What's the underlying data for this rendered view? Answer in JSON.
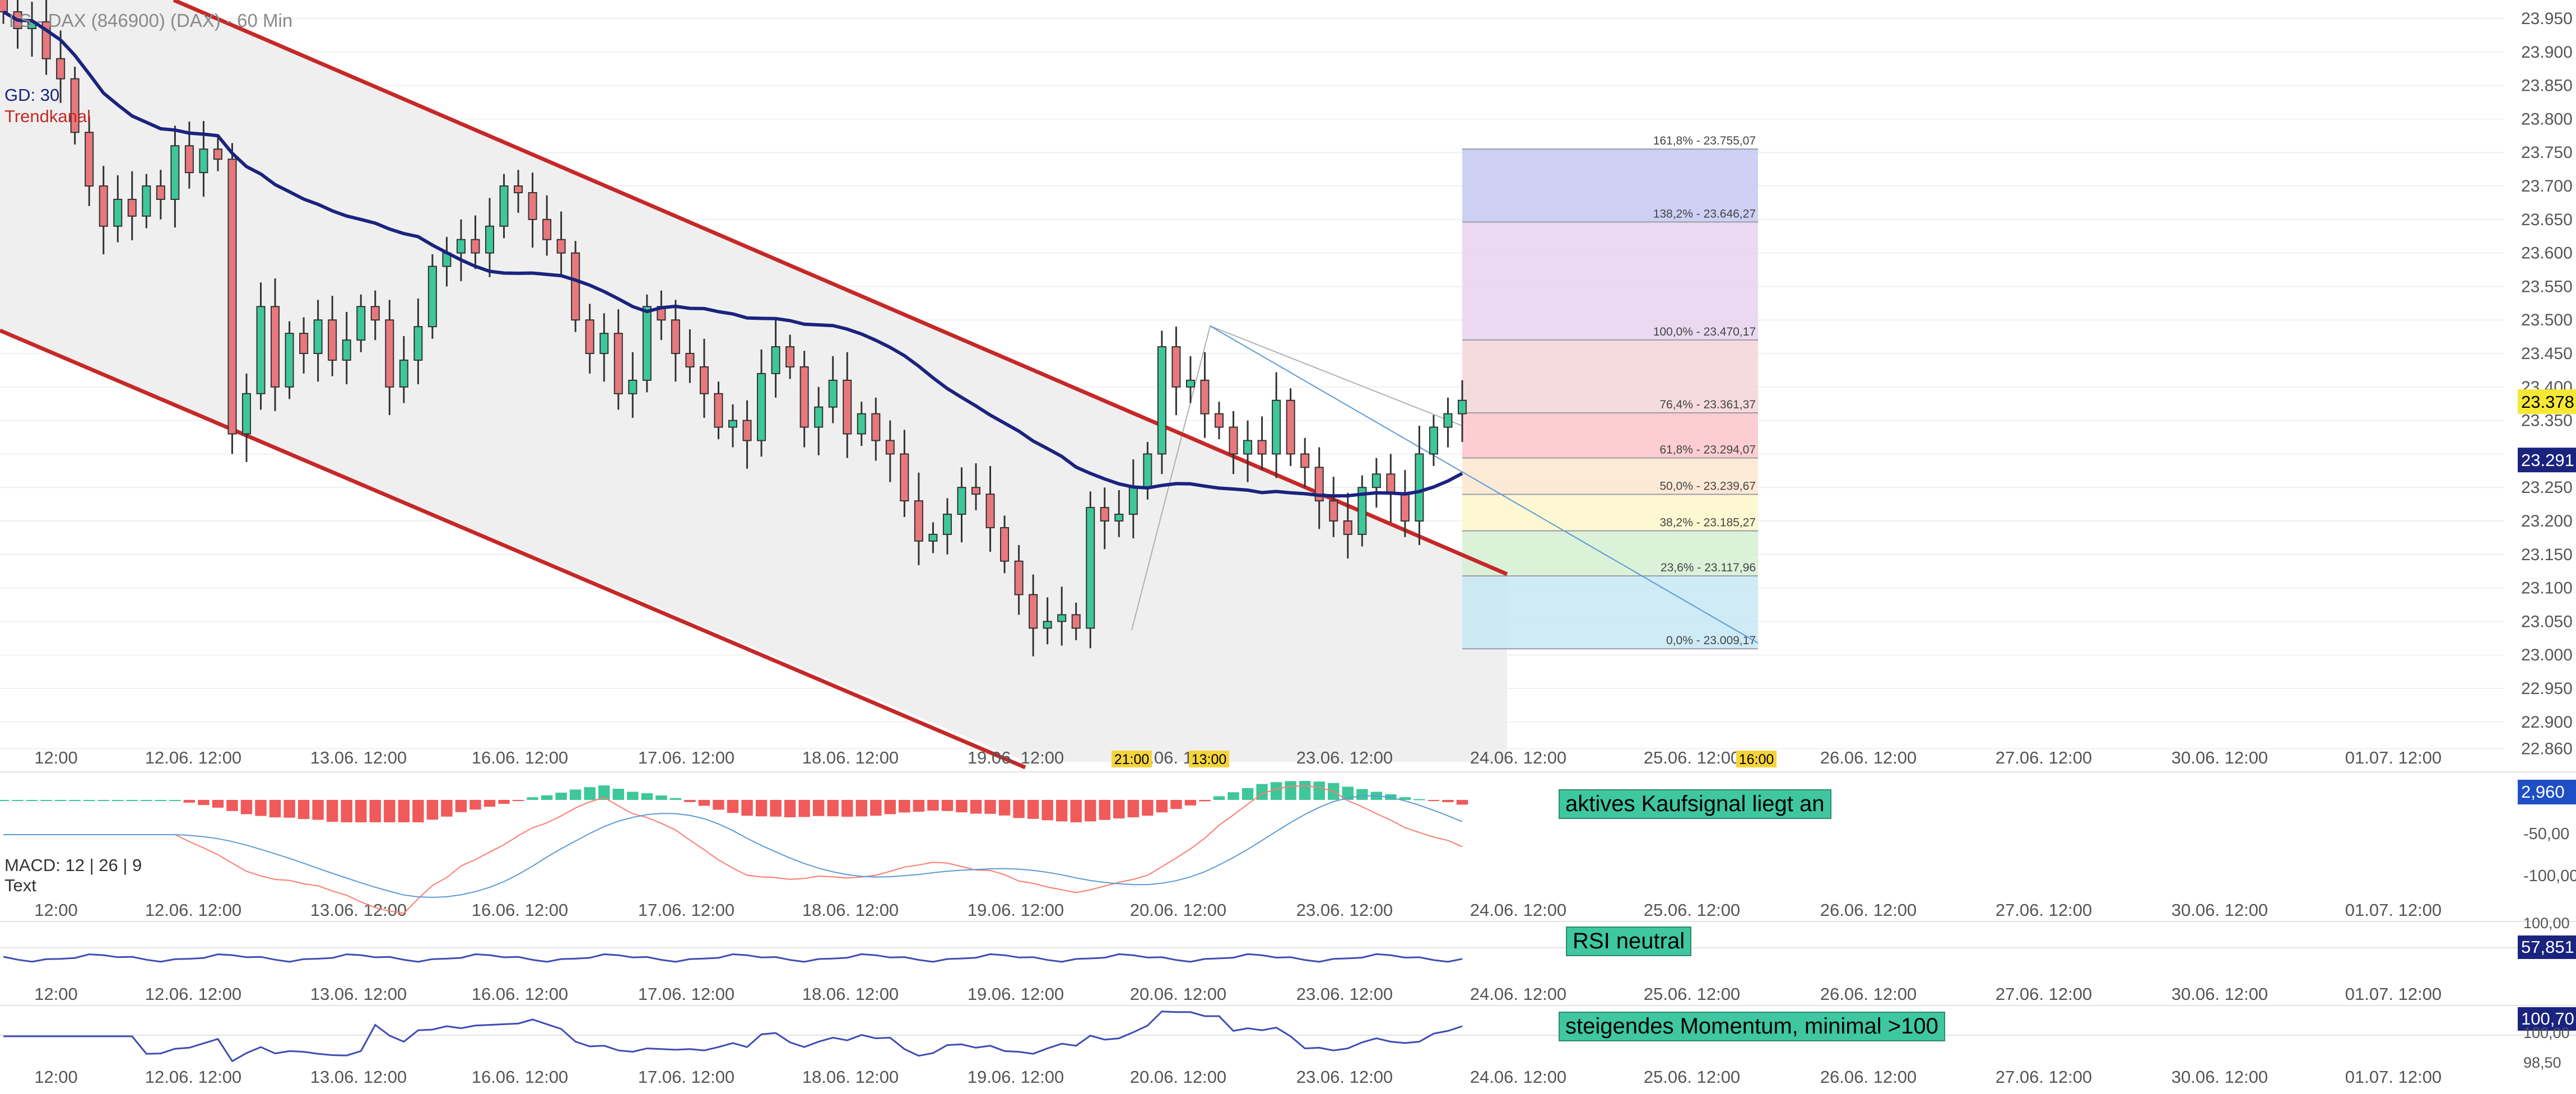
{
  "header": {
    "title": "LS - DAX (846900) (DAX) - 60 Min",
    "legend_gd": "GD: 30",
    "legend_trend": "Trendkanal"
  },
  "macd": {
    "label": "MACD: 12 | 26 | 9",
    "sublabel": "Text",
    "signal_text": "aktives Kaufsignal liegt an",
    "axis_labels": [
      "-50,00",
      "-100,00"
    ],
    "current_value": "2,960"
  },
  "rsi": {
    "signal_text": "RSI neutral",
    "current_value": "57,851",
    "axis_top": "100,00"
  },
  "momentum": {
    "signal_text": "steigendes Momentum, minimal >100",
    "current_value": "100,70",
    "axis_top": "100,00",
    "axis_bottom": "98,50"
  },
  "price_badges": {
    "last": "23.378",
    "ma": "23.291"
  },
  "time_badges": [
    "21:00",
    "13:00",
    "16:00"
  ],
  "colors": {
    "up": "#3ec79a",
    "down": "#e8787c",
    "trend": "#c62828",
    "ma": "#1a237e",
    "macd_pos": "#3ec79a",
    "macd_neg": "#f05a5a"
  },
  "chart_data": {
    "type": "candlestick",
    "title": "LS - DAX (846900) (DAX) - 60 Min",
    "y_ticks": [
      "23.950",
      "23.900",
      "23.850",
      "23.800",
      "23.750",
      "23.700",
      "23.650",
      "23.600",
      "23.550",
      "23.500",
      "23.450",
      "23.400",
      "23.350",
      "23.300",
      "23.250",
      "23.200",
      "23.150",
      "23.100",
      "23.050",
      "23.000",
      "22.950",
      "22.900",
      "22.860"
    ],
    "ylim": [
      22860,
      23960
    ],
    "x_tick_labels": [
      "12:00",
      "12.06. 12:00",
      "13.06. 12:00",
      "16.06. 12:00",
      "17.06. 12:00",
      "18.06. 12:00",
      "19.06. 12:00",
      "20.06. 12:00",
      "23.06. 12:00",
      "24.06. 12:00",
      "25.06. 12:00",
      "26.06. 12:00",
      "27.06. 12:00",
      "30.06. 12:00",
      "01.07. 12:00"
    ],
    "fibonacci": [
      {
        "label": "161,8% - 23.755,07",
        "value": 23755.07
      },
      {
        "label": "138,2% - 23.646,27",
        "value": 23646.27
      },
      {
        "label": "100,0% - 23.470,17",
        "value": 23470.17
      },
      {
        "label": "76,4% - 23.361,37",
        "value": 23361.37
      },
      {
        "label": "61,8% - 23.294,07",
        "value": 23294.07
      },
      {
        "label": "50,0% - 23.239,67",
        "value": 23239.67
      },
      {
        "label": "38,2% - 23.185,27",
        "value": 23185.27
      },
      {
        "label": "23,6% - 23.117,96",
        "value": 23117.96
      },
      {
        "label": "0,0% - 23.009,17",
        "value": 23009.17
      }
    ],
    "closes": [
      23960,
      23935,
      23945,
      23890,
      23860,
      23780,
      23700,
      23640,
      23680,
      23655,
      23700,
      23680,
      23760,
      23720,
      23755,
      23740,
      23330,
      23390,
      23520,
      23400,
      23480,
      23450,
      23500,
      23440,
      23470,
      23520,
      23500,
      23400,
      23440,
      23490,
      23580,
      23600,
      23620,
      23600,
      23640,
      23700,
      23690,
      23650,
      23620,
      23600,
      23500,
      23450,
      23480,
      23390,
      23410,
      23520,
      23500,
      23450,
      23430,
      23390,
      23340,
      23350,
      23320,
      23420,
      23460,
      23430,
      23340,
      23370,
      23410,
      23330,
      23360,
      23320,
      23300,
      23230,
      23170,
      23180,
      23210,
      23250,
      23240,
      23190,
      23140,
      23090,
      23040,
      23050,
      23060,
      23040,
      23220,
      23200,
      23210,
      23250,
      23300,
      23460,
      23400,
      23410,
      23360,
      23340,
      23300,
      23320,
      23300,
      23380,
      23300,
      23280,
      23230,
      23200,
      23180,
      23250,
      23270,
      23240,
      23200,
      23300,
      23340,
      23360,
      23380
    ]
  }
}
